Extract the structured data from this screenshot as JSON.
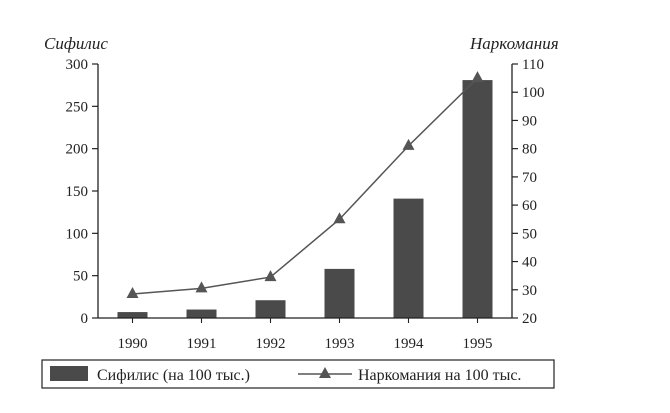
{
  "chart_data": {
    "type": "bar+line",
    "categories": [
      "1990",
      "1991",
      "1992",
      "1993",
      "1994",
      "1995"
    ],
    "series": [
      {
        "name": "Сифилис (на 100 тыс.)",
        "type": "bar",
        "axis": "left",
        "color": "#4a4a4a",
        "values": [
          7,
          10,
          21,
          58,
          141,
          281
        ]
      },
      {
        "name": "Наркомания на 100 тыс.",
        "type": "line",
        "axis": "right",
        "color": "#555555",
        "marker": "triangle",
        "values": [
          28.5,
          30.5,
          34.5,
          55,
          81,
          105
        ]
      }
    ],
    "y_left": {
      "label": "Сифилис",
      "min": 0,
      "max": 300,
      "ticks": [
        "0",
        "50",
        "100",
        "150",
        "200",
        "250",
        "300"
      ]
    },
    "y_right": {
      "label": "Наркомания",
      "min": 20,
      "max": 110,
      "ticks": [
        "20",
        "30",
        "40",
        "50",
        "60",
        "70",
        "80",
        "90",
        "100",
        "110"
      ]
    },
    "grid": false,
    "legend": {
      "position": "bottom",
      "boxed": true
    }
  }
}
